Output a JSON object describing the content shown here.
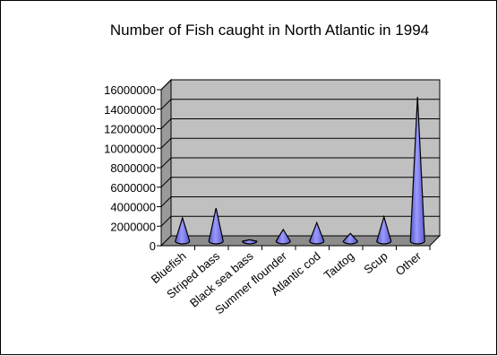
{
  "chart_data": {
    "type": "bar",
    "title": "Number of Fish caught in North Atlantic in 1994",
    "xlabel": "",
    "ylabel": "",
    "categories": [
      "Bluefish",
      "Striped bass",
      "Black sea bass",
      "Summer flounder",
      "Atlantic cod",
      "Tautog",
      "Scup",
      "Other"
    ],
    "values": [
      2400000,
      3400000,
      150000,
      1200000,
      1900000,
      800000,
      2500000,
      14800000
    ],
    "ylim": [
      0,
      16000000
    ],
    "yticks": [
      "16000000",
      "14000000",
      "12000000",
      "10000000",
      "8000000",
      "6000000",
      "4000000",
      "2000000",
      "0"
    ],
    "grid": true,
    "legend": "none",
    "mark_shape": "cone",
    "colors": {
      "plot_back": "#c0c0c0",
      "plot_side": "#9a9a9a",
      "floor": "#8c8c8c",
      "cone_fill": "#9999ff",
      "cone_shade": "#5a5ac8",
      "gridline": "#000000"
    }
  }
}
